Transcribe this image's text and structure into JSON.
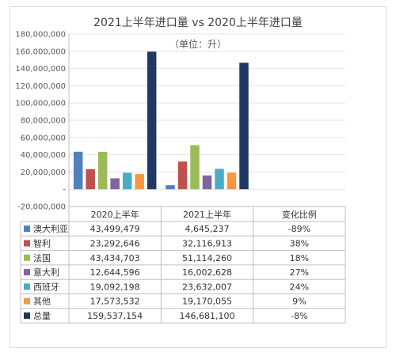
{
  "chart_data": {
    "type": "bar",
    "title": "2021上半年进口量 vs 2020上半年进口量",
    "subtitle": "（单位：升）",
    "ylim": [
      -20000000,
      180000000
    ],
    "yticks": [
      -20000000,
      0,
      20000000,
      40000000,
      60000000,
      80000000,
      100000000,
      120000000,
      140000000,
      160000000,
      180000000
    ],
    "ytick_labels": [
      "-20,000,000",
      "-",
      "20,000,000",
      "40,000,000",
      "60,000,000",
      "80,000,000",
      "100,000,000",
      "120,000,000",
      "140,000,000",
      "160,000,000",
      "180,000,000"
    ],
    "grid": true,
    "legend_placement": "data-table",
    "categories": [
      "2020上半年",
      "2021上半年",
      "变化比例"
    ],
    "series": [
      {
        "name": "澳大利亚",
        "color": "#4f81bd",
        "values": [
          43499479,
          4645237,
          -0.89
        ],
        "labels": [
          "43,499,479",
          "4,645,237",
          "-89%"
        ]
      },
      {
        "name": "智利",
        "color": "#c0504d",
        "values": [
          23292646,
          32116913,
          0.38
        ],
        "labels": [
          "23,292,646",
          "32,116,913",
          "38%"
        ]
      },
      {
        "name": "法国",
        "color": "#9bbb59",
        "values": [
          43434703,
          51114260,
          0.18
        ],
        "labels": [
          "43,434,703",
          "51,114,260",
          "18%"
        ]
      },
      {
        "name": "意大利",
        "color": "#8064a2",
        "values": [
          12644596,
          16002628,
          0.27
        ],
        "labels": [
          "12,644,596",
          "16,002,628",
          "27%"
        ]
      },
      {
        "name": "西班牙",
        "color": "#4bacc6",
        "values": [
          19092198,
          23632007,
          0.24
        ],
        "labels": [
          "19,092,198",
          "23,632,007",
          "24%"
        ]
      },
      {
        "name": "其他",
        "color": "#f79646",
        "values": [
          17573532,
          19170055,
          0.09
        ],
        "labels": [
          "17,573,532",
          "19,170,055",
          "9%"
        ]
      },
      {
        "name": "总量",
        "color": "#1f3864",
        "values": [
          159537154,
          146681100,
          -0.08
        ],
        "labels": [
          "159,537,154",
          "146,681,100",
          "-8%"
        ]
      }
    ]
  }
}
